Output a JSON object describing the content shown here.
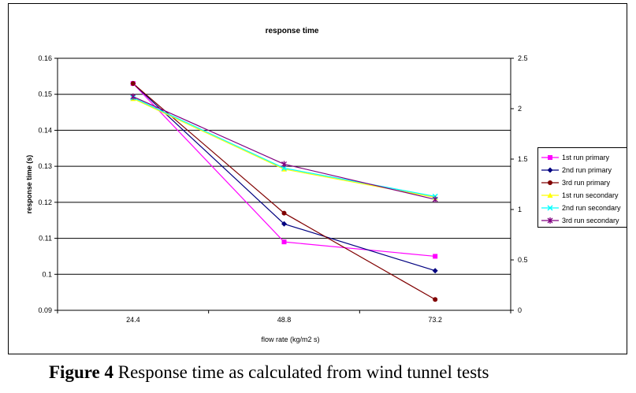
{
  "caption": {
    "label": "Figure 4",
    "text": " Response time as calculated from wind tunnel tests"
  },
  "chart_data": {
    "type": "line",
    "title": "response time",
    "xlabel": "flow rate (kg/m2 s)",
    "ylabel": "response time (s)",
    "categories": [
      "24.4",
      "48.8",
      "73.2"
    ],
    "ylim": [
      0.09,
      0.16
    ],
    "y_ticks": [
      "0.09",
      "0.1",
      "0.11",
      "0.12",
      "0.13",
      "0.14",
      "0.15",
      "0.16"
    ],
    "y2lim": [
      0,
      2.5
    ],
    "y2_ticks": [
      "0",
      "0.5",
      "1",
      "1.5",
      "2",
      "2.5"
    ],
    "grid": true,
    "legend_position": "right",
    "series": [
      {
        "name": "1st run primary",
        "axis": "left",
        "color": "#ff00ff",
        "marker": "square",
        "values": [
          0.153,
          0.109,
          0.105
        ]
      },
      {
        "name": "2nd run primary",
        "axis": "left",
        "color": "#000080",
        "marker": "diamond",
        "values": [
          0.153,
          0.114,
          0.101
        ]
      },
      {
        "name": "3rd run primary",
        "axis": "left",
        "color": "#800000",
        "marker": "circle",
        "values": [
          0.153,
          0.117,
          0.093
        ]
      },
      {
        "name": "1st run secondary",
        "axis": "right",
        "color": "#ffff00",
        "marker": "triangle",
        "values": [
          2.1,
          1.4,
          1.12
        ]
      },
      {
        "name": "2nd run secondary",
        "axis": "right",
        "color": "#00ffff",
        "marker": "x",
        "values": [
          2.11,
          1.41,
          1.13
        ]
      },
      {
        "name": "3rd run secondary",
        "axis": "right",
        "color": "#800080",
        "marker": "star",
        "values": [
          2.12,
          1.45,
          1.1
        ]
      }
    ]
  }
}
